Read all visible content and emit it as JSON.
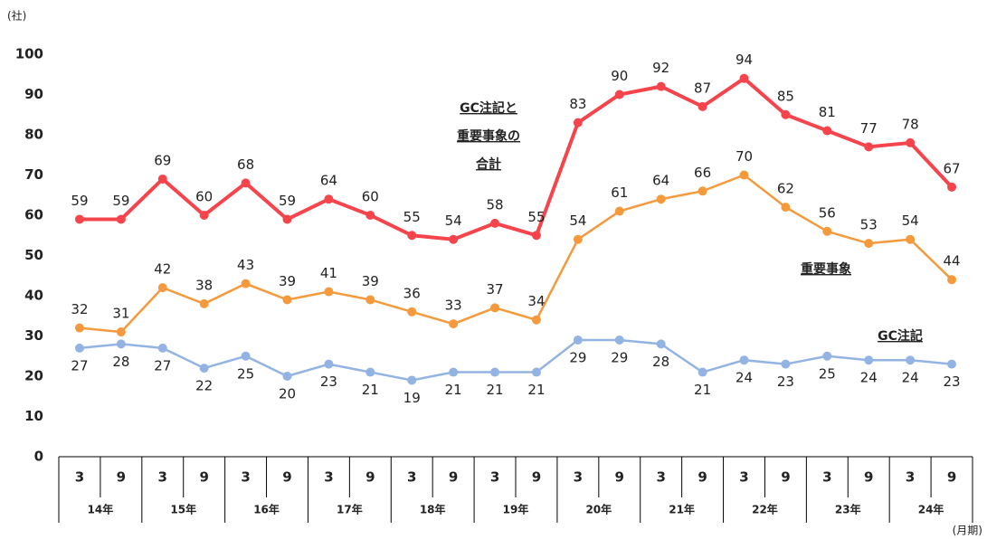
{
  "chart_data": {
    "type": "line",
    "y_unit": "(社)",
    "x_unit": "(月期)",
    "categories": [
      "3",
      "9",
      "3",
      "9",
      "3",
      "9",
      "3",
      "9",
      "3",
      "9",
      "3",
      "9",
      "3",
      "9",
      "3",
      "9",
      "3",
      "9",
      "3",
      "9",
      "3",
      "9"
    ],
    "groups": [
      "14年",
      "15年",
      "16年",
      "17年",
      "18年",
      "19年",
      "20年",
      "21年",
      "22年",
      "23年",
      "24年"
    ],
    "ylim": [
      0,
      100
    ],
    "yticks": [
      0,
      10,
      20,
      30,
      40,
      50,
      60,
      70,
      80,
      90,
      100
    ],
    "grid": false,
    "series": [
      {
        "name": [
          "GC注記と",
          "重要事象の",
          "合計"
        ],
        "color": "#f5444c",
        "label_position": "above",
        "values": [
          59,
          59,
          69,
          60,
          68,
          59,
          64,
          60,
          55,
          54,
          58,
          55,
          83,
          90,
          92,
          87,
          94,
          85,
          81,
          77,
          78,
          67
        ]
      },
      {
        "name": [
          "重要事象"
        ],
        "color": "#f59a3c",
        "label_position": "above",
        "values": [
          32,
          31,
          42,
          38,
          43,
          39,
          41,
          39,
          36,
          33,
          37,
          34,
          54,
          61,
          64,
          66,
          70,
          62,
          56,
          53,
          54,
          44
        ]
      },
      {
        "name": [
          "GC注記"
        ],
        "color": "#93b4e3",
        "label_position": "below",
        "values": [
          27,
          28,
          27,
          22,
          25,
          20,
          23,
          21,
          19,
          21,
          21,
          21,
          29,
          29,
          28,
          21,
          24,
          23,
          25,
          24,
          24,
          23
        ]
      }
    ]
  }
}
